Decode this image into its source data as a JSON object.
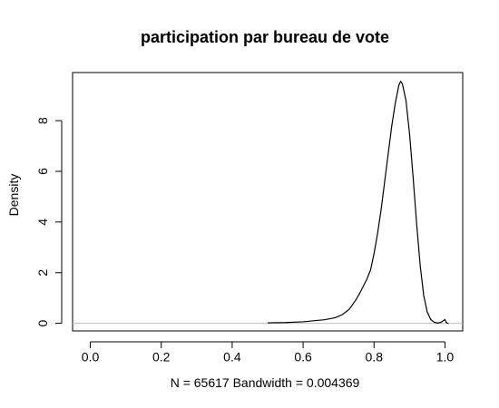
{
  "chart_data": {
    "type": "line",
    "title": "participation par bureau de vote",
    "xlabel": "N = 65617   Bandwidth = 0.004369",
    "ylabel": "Density",
    "xlim": [
      -0.05,
      1.05
    ],
    "ylim": [
      -0.3,
      9.9
    ],
    "x_ticks": [
      0.0,
      0.2,
      0.4,
      0.6,
      0.8,
      1.0
    ],
    "x_tick_labels": [
      "0.0",
      "0.2",
      "0.4",
      "0.6",
      "0.8",
      "1.0"
    ],
    "y_ticks": [
      0,
      2,
      4,
      6,
      8
    ],
    "y_tick_labels": [
      "0",
      "2",
      "4",
      "6",
      "8"
    ],
    "baseline": 0,
    "grid": false,
    "series": [
      {
        "x": [
          0.5,
          0.55,
          0.6,
          0.63,
          0.66,
          0.69,
          0.71,
          0.73,
          0.75,
          0.76,
          0.78,
          0.79,
          0.8,
          0.81,
          0.82,
          0.83,
          0.84,
          0.85,
          0.86,
          0.87,
          0.875,
          0.88,
          0.89,
          0.9,
          0.91,
          0.92,
          0.93,
          0.94,
          0.95,
          0.96,
          0.97,
          0.98,
          0.99,
          1.0,
          1.003,
          1.006,
          1.01
        ],
        "y": [
          0.02,
          0.03,
          0.06,
          0.1,
          0.14,
          0.22,
          0.34,
          0.55,
          0.95,
          1.2,
          1.75,
          2.1,
          2.75,
          3.55,
          4.5,
          5.6,
          6.7,
          7.8,
          8.7,
          9.4,
          9.55,
          9.45,
          8.8,
          7.5,
          5.8,
          3.95,
          2.3,
          1.1,
          0.45,
          0.15,
          0.04,
          0.01,
          0.05,
          0.15,
          0.05,
          0.01,
          0.0
        ]
      }
    ]
  }
}
